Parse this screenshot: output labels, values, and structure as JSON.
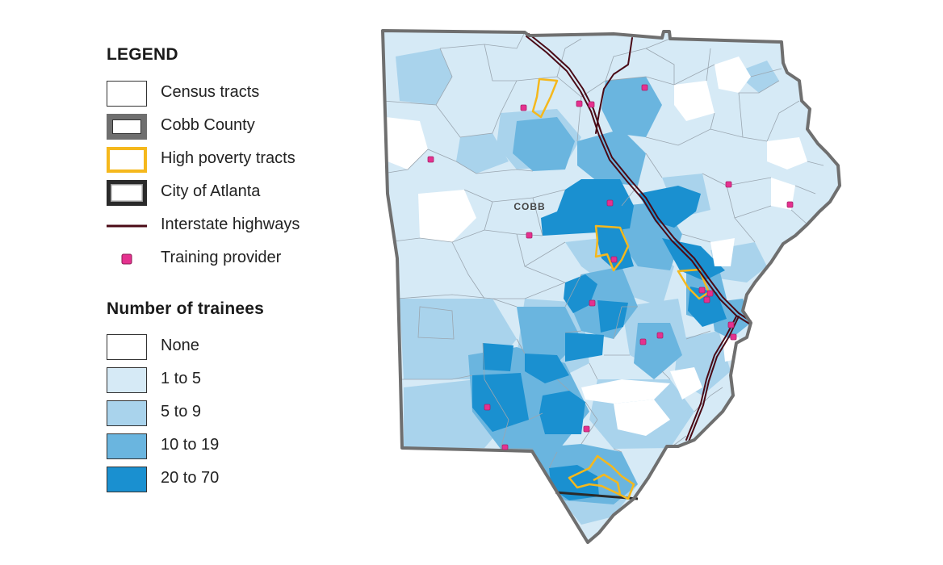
{
  "legend": {
    "title": "LEGEND",
    "items": [
      {
        "label": "Census tracts",
        "symbol": "census-tract-icon"
      },
      {
        "label": "Cobb County",
        "symbol": "county-boundary-icon"
      },
      {
        "label": "High poverty tracts",
        "symbol": "high-poverty-icon"
      },
      {
        "label": "City of Atlanta",
        "symbol": "city-boundary-icon"
      },
      {
        "label": "Interstate highways",
        "symbol": "highway-line-icon"
      },
      {
        "label": "Training provider",
        "symbol": "training-provider-icon"
      }
    ]
  },
  "trainees_legend": {
    "title": "Number of trainees",
    "classes": [
      {
        "label": "None",
        "color": "#ffffff"
      },
      {
        "label": "1 to 5",
        "color": "#d6eaf6"
      },
      {
        "label": "5 to 9",
        "color": "#a9d3ec"
      },
      {
        "label": "10 to 19",
        "color": "#6ab5df"
      },
      {
        "label": "20 to 70",
        "color": "#1a90d0"
      }
    ]
  },
  "map": {
    "county_label": "COBB",
    "colors": {
      "county_border": "#6f6f6f",
      "high_poverty": "#f5b81c",
      "highway": "#4a0a16",
      "provider": "#e5318f",
      "tract_line": "#9aa6b0"
    }
  }
}
